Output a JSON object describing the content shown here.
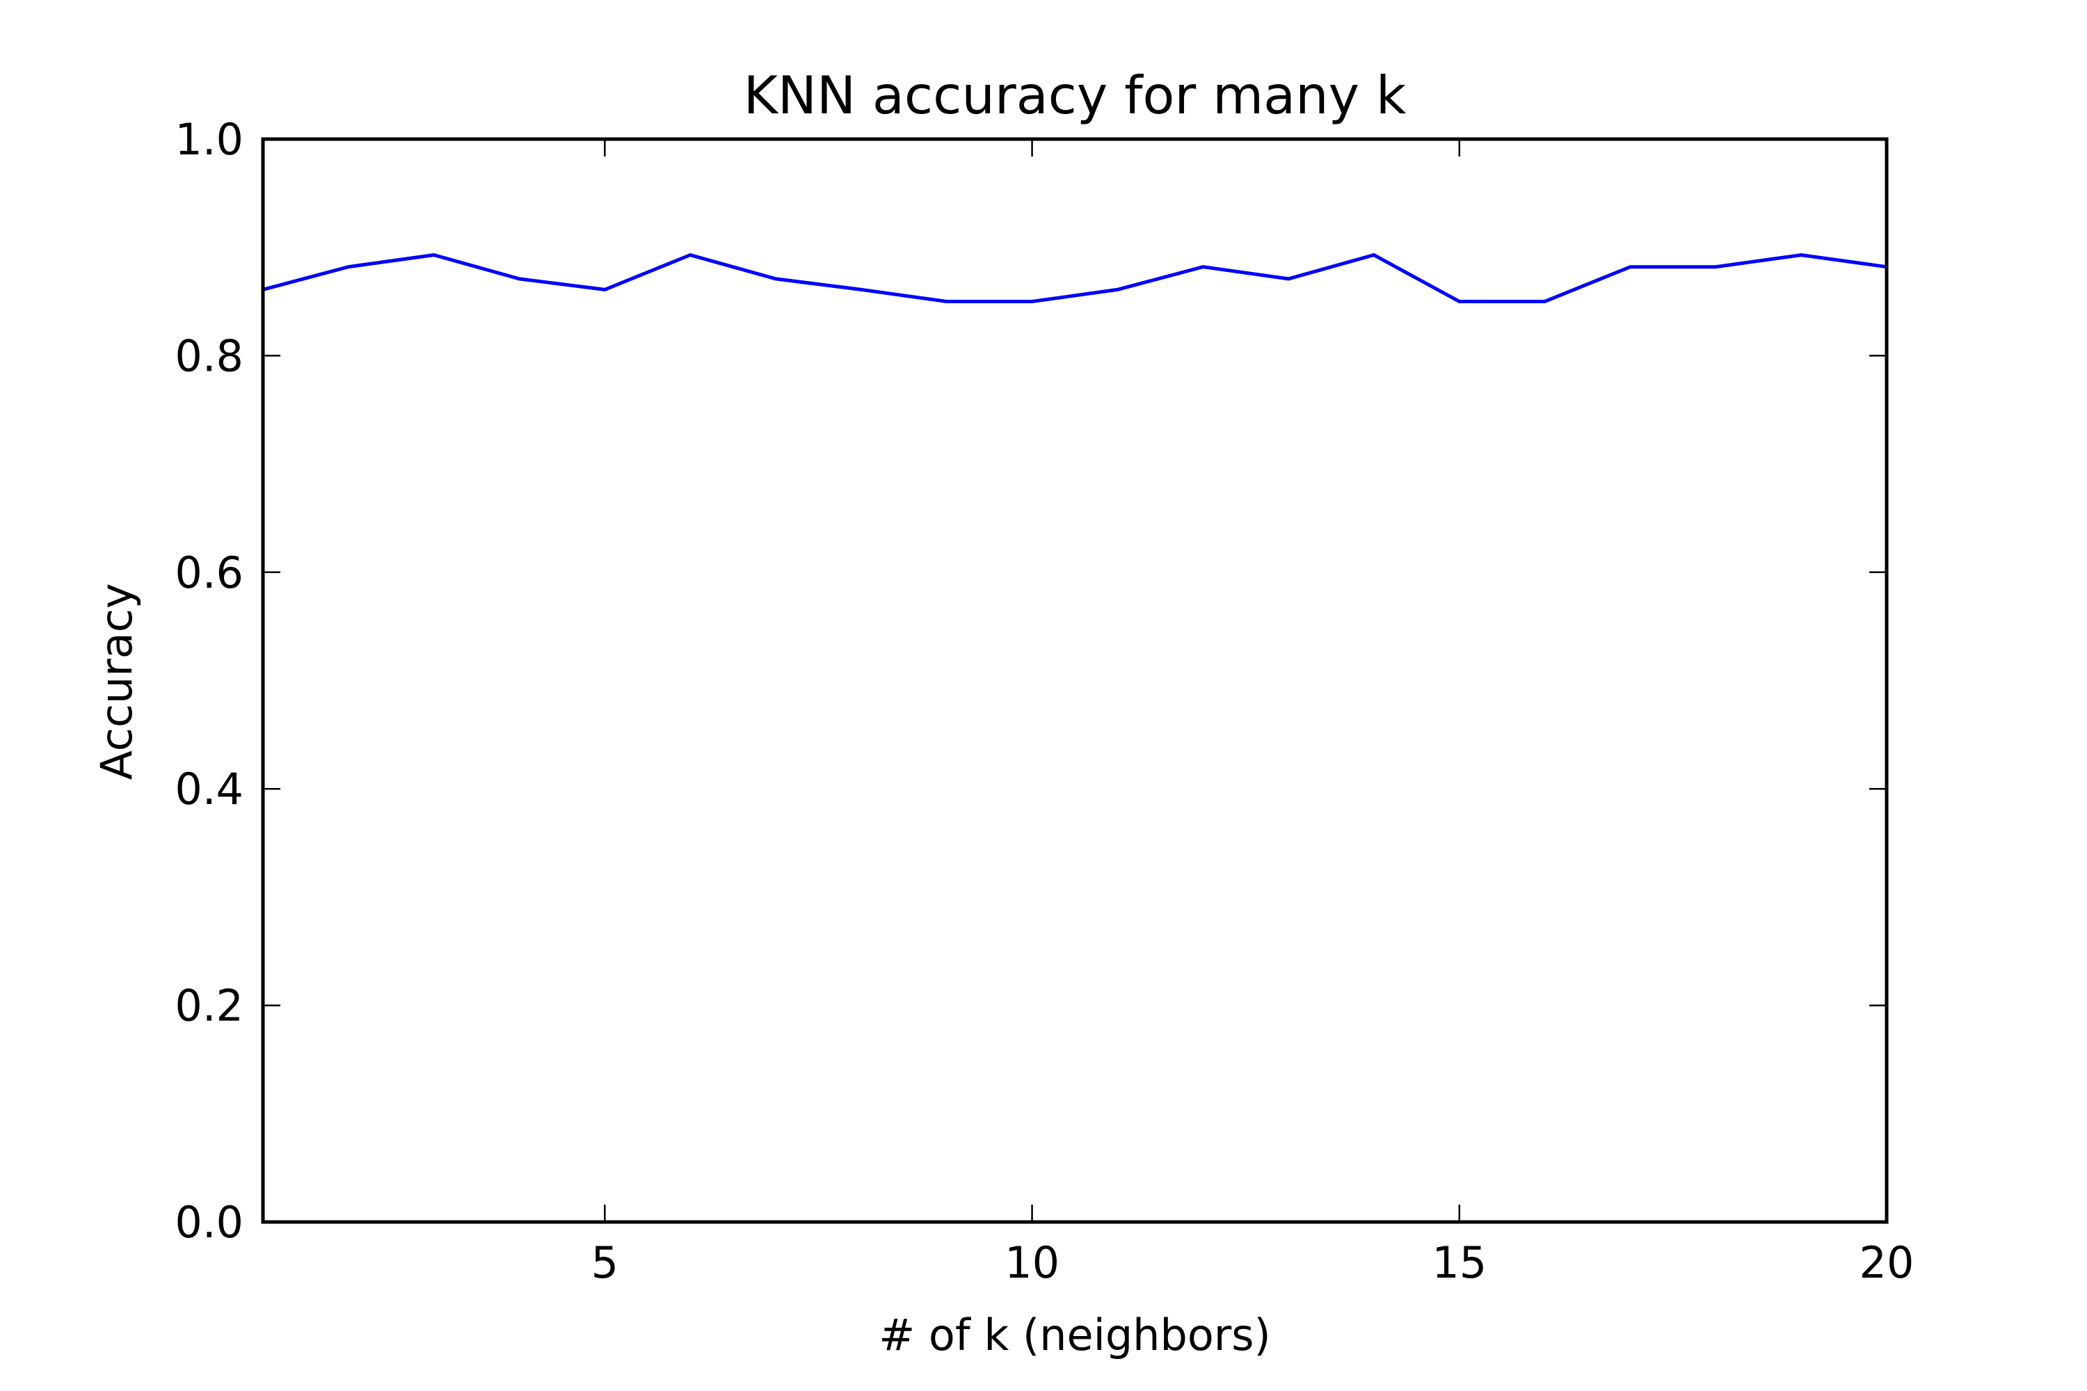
{
  "chart_data": {
    "type": "line",
    "title": "KNN accuracy for many k",
    "xlabel": "# of k (neighbors)",
    "ylabel": "Accuracy",
    "xlim": [
      1,
      20
    ],
    "ylim": [
      0.0,
      1.0
    ],
    "x_ticks": [
      5,
      10,
      15,
      20
    ],
    "x_tick_labels": [
      "5",
      "10",
      "15",
      "20"
    ],
    "y_ticks": [
      0.0,
      0.2,
      0.4,
      0.6,
      0.8,
      1.0
    ],
    "y_tick_labels": [
      "0.0",
      "0.2",
      "0.4",
      "0.6",
      "0.8",
      "1.0"
    ],
    "grid": false,
    "legend": "none",
    "series": [
      {
        "color": "#0000ff",
        "x": [
          1,
          2,
          3,
          4,
          5,
          6,
          7,
          8,
          9,
          10,
          11,
          12,
          13,
          14,
          15,
          16,
          17,
          18,
          19,
          20
        ],
        "y": [
          0.861,
          0.882,
          0.893,
          0.871,
          0.861,
          0.893,
          0.871,
          0.861,
          0.85,
          0.85,
          0.861,
          0.882,
          0.871,
          0.893,
          0.85,
          0.85,
          0.882,
          0.882,
          0.893,
          0.882
        ]
      }
    ]
  }
}
